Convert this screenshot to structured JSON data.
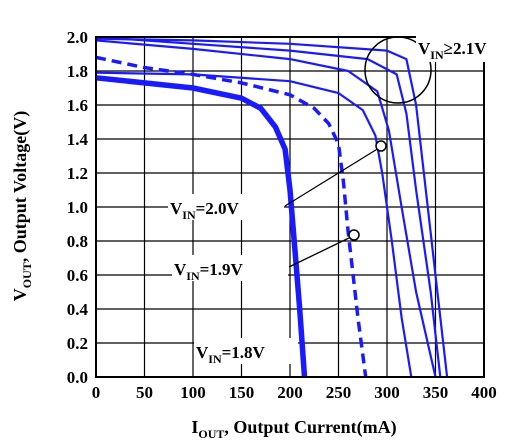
{
  "chart_data": {
    "type": "line",
    "title": "",
    "xlabel": {
      "main": "I",
      "sub": "OUT",
      "rest": ", Output Current(mA)"
    },
    "ylabel": {
      "main": "V",
      "sub": "OUT",
      "rest": ", Output Voltage(V)"
    },
    "xlim": [
      0,
      400
    ],
    "ylim": [
      0,
      2.0
    ],
    "x_ticks": [
      0,
      50,
      100,
      150,
      200,
      250,
      300,
      350,
      400
    ],
    "x_tick_labels": [
      "0",
      "50",
      "100",
      "150",
      "200",
      "250",
      "300",
      "350",
      "400"
    ],
    "y_ticks": [
      0,
      0.2,
      0.4,
      0.6,
      0.8,
      1.0,
      1.2,
      1.4,
      1.6,
      1.8,
      2.0
    ],
    "y_tick_labels": [
      "0.0",
      "0.2",
      "0.4",
      "0.6",
      "0.8",
      "1.0",
      "1.2",
      "1.4",
      "1.6",
      "1.8",
      "2.0"
    ],
    "grid": true,
    "series": [
      {
        "style": "thick",
        "color": "#1a1aff",
        "points": [
          [
            0,
            1.76
          ],
          [
            50,
            1.73
          ],
          [
            100,
            1.7
          ],
          [
            150,
            1.64
          ],
          [
            170,
            1.58
          ],
          [
            185,
            1.47
          ],
          [
            195,
            1.34
          ],
          [
            200,
            1.1
          ],
          [
            205,
            0.75
          ],
          [
            210,
            0.4
          ],
          [
            215,
            0
          ]
        ]
      },
      {
        "style": "dashed",
        "color": "#1a1aff",
        "points": [
          [
            0,
            1.88
          ],
          [
            50,
            1.82
          ],
          [
            100,
            1.78
          ],
          [
            150,
            1.73
          ],
          [
            200,
            1.66
          ],
          [
            225,
            1.58
          ],
          [
            240,
            1.49
          ],
          [
            250,
            1.37
          ],
          [
            255,
            1.15
          ],
          [
            260,
            0.85
          ],
          [
            265,
            0.6
          ],
          [
            270,
            0.35
          ],
          [
            278,
            0
          ]
        ]
      },
      {
        "style": "thin",
        "color": "#1a1aff",
        "points": [
          [
            0,
            1.79
          ],
          [
            100,
            1.78
          ],
          [
            200,
            1.74
          ],
          [
            250,
            1.67
          ],
          [
            275,
            1.57
          ],
          [
            288,
            1.42
          ],
          [
            295,
            1.2
          ],
          [
            305,
            0.8
          ],
          [
            315,
            0.35
          ],
          [
            325,
            0
          ]
        ]
      },
      {
        "style": "thin",
        "color": "#1a1aff",
        "points": [
          [
            0,
            1.98
          ],
          [
            100,
            1.93
          ],
          [
            200,
            1.87
          ],
          [
            260,
            1.8
          ],
          [
            290,
            1.68
          ],
          [
            302,
            1.45
          ],
          [
            315,
            1.0
          ],
          [
            330,
            0.5
          ],
          [
            350,
            0
          ]
        ]
      },
      {
        "style": "thin",
        "color": "#1a1aff",
        "points": [
          [
            0,
            2.0
          ],
          [
            100,
            1.96
          ],
          [
            200,
            1.92
          ],
          [
            280,
            1.87
          ],
          [
            310,
            1.78
          ],
          [
            320,
            1.55
          ],
          [
            330,
            1.1
          ],
          [
            345,
            0.5
          ],
          [
            355,
            0
          ]
        ]
      },
      {
        "style": "thin",
        "color": "#1a1aff",
        "points": [
          [
            0,
            1.99
          ],
          [
            100,
            1.98
          ],
          [
            200,
            1.96
          ],
          [
            300,
            1.92
          ],
          [
            320,
            1.87
          ],
          [
            330,
            1.6
          ],
          [
            340,
            1.1
          ],
          [
            352,
            0.5
          ],
          [
            362,
            0
          ]
        ]
      }
    ],
    "annotations": [
      {
        "main": "V",
        "sub": "IN",
        "rest": "≥2.1V"
      },
      {
        "main": "V",
        "sub": "IN",
        "rest": "=2.0V"
      },
      {
        "main": "V",
        "sub": "IN",
        "rest": "=1.9V"
      },
      {
        "main": "V",
        "sub": "IN",
        "rest": "=1.8V"
      }
    ]
  }
}
